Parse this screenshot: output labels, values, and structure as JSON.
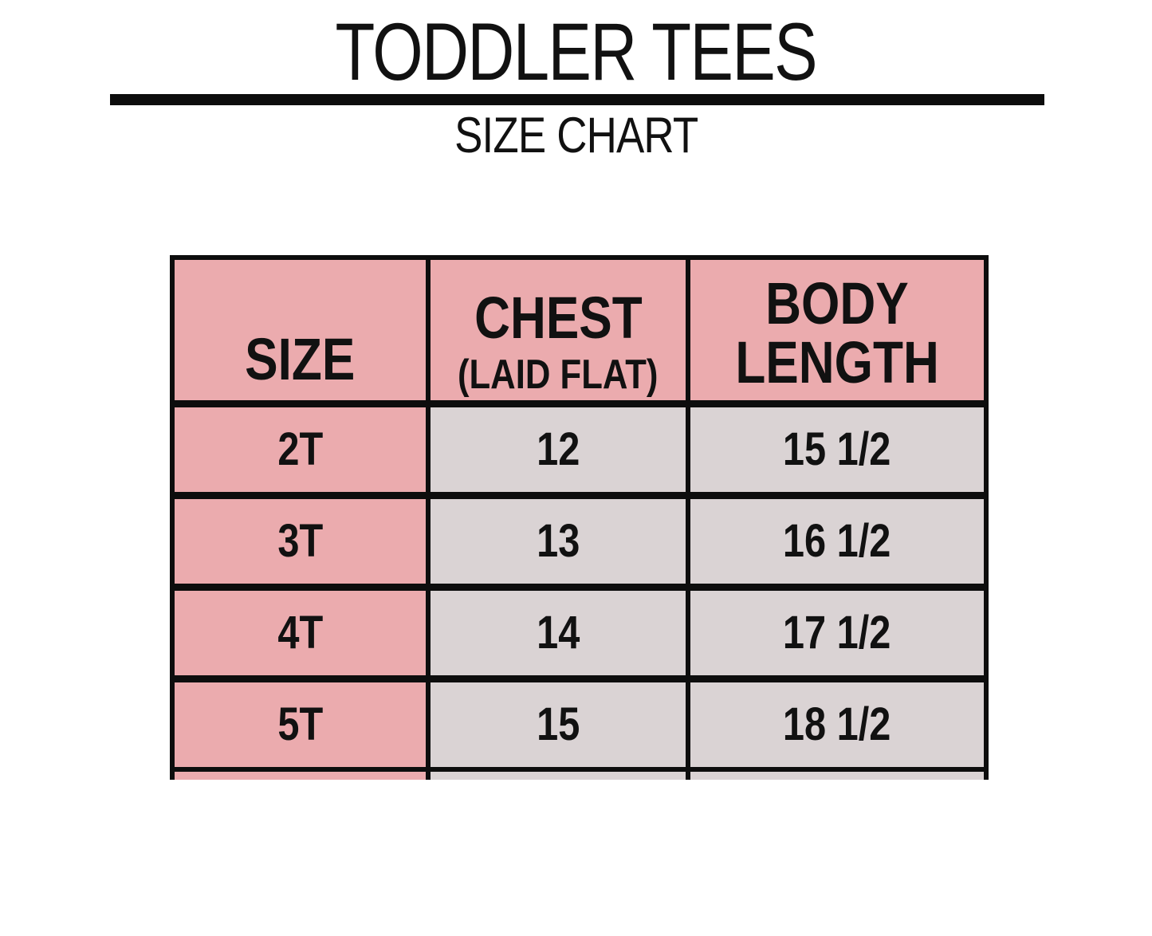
{
  "title": "TODDLER TEES",
  "subtitle": "SIZE CHART",
  "colors": {
    "header_bg": "#ebabae",
    "row_label_bg": "#ebabae",
    "cell_bg": "#dad3d4",
    "border": "#0d0d0d",
    "text": "#111111",
    "page_bg": "#ffffff"
  },
  "table": {
    "header": {
      "size_label": "SIZE",
      "chest_label": "CHEST",
      "chest_sublabel": "(LAID FLAT)",
      "body_length_line1": "BODY",
      "body_length_line2": "LENGTH"
    },
    "rows": [
      {
        "size": "2T",
        "chest": "12",
        "body_length": "15 1/2"
      },
      {
        "size": "3T",
        "chest": "13",
        "body_length": "16 1/2"
      },
      {
        "size": "4T",
        "chest": "14",
        "body_length": "17 1/2"
      },
      {
        "size": "5T",
        "chest": "15",
        "body_length": "18 1/2"
      }
    ]
  },
  "chart_data": {
    "type": "table",
    "title": "TODDLER TEES",
    "subtitle": "SIZE CHART",
    "columns": [
      "SIZE",
      "CHEST (LAID FLAT)",
      "BODY LENGTH"
    ],
    "rows": [
      [
        "2T",
        "12",
        "15 1/2"
      ],
      [
        "3T",
        "13",
        "16 1/2"
      ],
      [
        "4T",
        "14",
        "17 1/2"
      ],
      [
        "5T",
        "15",
        "18 1/2"
      ]
    ]
  }
}
